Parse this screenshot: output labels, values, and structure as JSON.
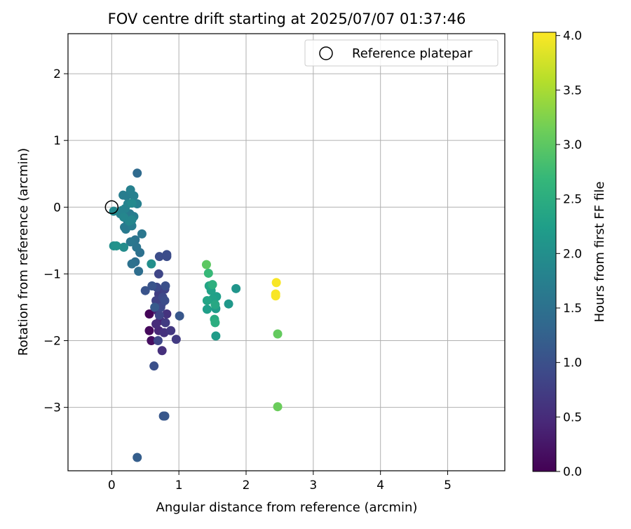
{
  "chart_data": {
    "type": "scatter",
    "title": "FOV centre drift starting at 2025/07/07 01:37:46",
    "xlabel": "Angular distance from reference (arcmin)",
    "ylabel": "Rotation from reference (arcmin)",
    "xlim": [
      -0.65,
      5.85
    ],
    "ylim": [
      -3.95,
      2.6
    ],
    "xticks": [
      0,
      1,
      2,
      3,
      4,
      5
    ],
    "xtick_labels": [
      "0",
      "1",
      "2",
      "3",
      "4",
      "5"
    ],
    "yticks": [
      2,
      1,
      0,
      -1,
      -2,
      -3
    ],
    "ytick_labels": [
      "2",
      "1",
      "0",
      "−1",
      "−2",
      "−3"
    ],
    "grid": true,
    "legend": {
      "placement": "top-right",
      "entries": [
        {
          "label": "Reference platepar",
          "marker": "open-circle"
        }
      ]
    },
    "colorbar": {
      "label": "Hours from first FF file",
      "colormap": "viridis",
      "range": [
        0.0,
        4.03
      ],
      "ticks": [
        0.0,
        0.5,
        1.0,
        1.5,
        2.0,
        2.5,
        3.0,
        3.5,
        4.0
      ],
      "tick_labels": [
        "0.0",
        "0.5",
        "1.0",
        "1.5",
        "2.0",
        "2.5",
        "3.0",
        "3.5",
        "4.0"
      ],
      "stops": [
        "#440154",
        "#482878",
        "#3e4989",
        "#31688e",
        "#26828e",
        "#1f9e89",
        "#35b779",
        "#6ece58",
        "#b5de2b",
        "#fde725"
      ]
    },
    "reference": {
      "x": 0.0,
      "y": 0.0
    },
    "points": [
      {
        "x": 0.56,
        "y": -1.6,
        "h": 0.05
      },
      {
        "x": 0.56,
        "y": -1.85,
        "h": 0.1
      },
      {
        "x": 0.59,
        "y": -2.0,
        "h": 0.15
      },
      {
        "x": 0.68,
        "y": -1.55,
        "h": 0.35
      },
      {
        "x": 0.72,
        "y": -1.7,
        "h": 0.4
      },
      {
        "x": 0.7,
        "y": -1.85,
        "h": 0.45
      },
      {
        "x": 0.66,
        "y": -1.75,
        "h": 0.5
      },
      {
        "x": 0.75,
        "y": -2.15,
        "h": 0.55
      },
      {
        "x": 0.78,
        "y": -1.88,
        "h": 0.6
      },
      {
        "x": 0.82,
        "y": -1.6,
        "h": 0.6
      },
      {
        "x": 0.88,
        "y": -1.85,
        "h": 0.65
      },
      {
        "x": 0.96,
        "y": -1.98,
        "h": 0.7
      },
      {
        "x": 0.8,
        "y": -1.73,
        "h": 0.7
      },
      {
        "x": 0.74,
        "y": -1.45,
        "h": 0.75
      },
      {
        "x": 0.7,
        "y": -1.3,
        "h": 0.75
      },
      {
        "x": 0.79,
        "y": -1.23,
        "h": 0.8
      },
      {
        "x": 0.66,
        "y": -1.4,
        "h": 0.8
      },
      {
        "x": 0.71,
        "y": -1.62,
        "h": 0.85
      },
      {
        "x": 0.69,
        "y": -2.0,
        "h": 0.85
      },
      {
        "x": 0.7,
        "y": -1.0,
        "h": 0.85
      },
      {
        "x": 0.67,
        "y": -1.2,
        "h": 0.9
      },
      {
        "x": 0.73,
        "y": -1.5,
        "h": 0.9
      },
      {
        "x": 0.76,
        "y": -1.35,
        "h": 0.9
      },
      {
        "x": 0.71,
        "y": -0.74,
        "h": 0.95
      },
      {
        "x": 0.82,
        "y": -0.74,
        "h": 0.95
      },
      {
        "x": 0.82,
        "y": -0.71,
        "h": 0.95
      },
      {
        "x": 0.79,
        "y": -1.4,
        "h": 0.95
      },
      {
        "x": 0.8,
        "y": -1.18,
        "h": 1.0
      },
      {
        "x": 0.63,
        "y": -2.38,
        "h": 1.0
      },
      {
        "x": 0.5,
        "y": -1.25,
        "h": 1.05
      },
      {
        "x": 0.6,
        "y": -1.18,
        "h": 1.05
      },
      {
        "x": 0.77,
        "y": -3.13,
        "h": 1.1
      },
      {
        "x": 0.79,
        "y": -3.13,
        "h": 1.1
      },
      {
        "x": 1.01,
        "y": -1.63,
        "h": 1.1
      },
      {
        "x": 0.64,
        "y": -1.5,
        "h": 1.15
      },
      {
        "x": 0.38,
        "y": -3.75,
        "h": 1.2
      },
      {
        "x": 0.38,
        "y": 0.51,
        "h": 1.4
      },
      {
        "x": 0.4,
        "y": -0.96,
        "h": 1.45
      },
      {
        "x": 0.35,
        "y": -0.82,
        "h": 1.45
      },
      {
        "x": 0.3,
        "y": -0.85,
        "h": 1.5
      },
      {
        "x": 0.42,
        "y": -0.68,
        "h": 1.5
      },
      {
        "x": 0.37,
        "y": -0.6,
        "h": 1.55
      },
      {
        "x": 0.35,
        "y": -0.49,
        "h": 1.55
      },
      {
        "x": 0.45,
        "y": -0.4,
        "h": 1.6
      },
      {
        "x": 0.28,
        "y": -0.52,
        "h": 1.6
      },
      {
        "x": 0.24,
        "y": -0.22,
        "h": 1.6
      },
      {
        "x": 0.19,
        "y": -0.3,
        "h": 1.65
      },
      {
        "x": 0.21,
        "y": -0.33,
        "h": 1.65
      },
      {
        "x": 0.27,
        "y": -0.1,
        "h": 1.65
      },
      {
        "x": 0.3,
        "y": -0.28,
        "h": 1.7
      },
      {
        "x": 0.33,
        "y": -0.14,
        "h": 1.7
      },
      {
        "x": 0.17,
        "y": 0.18,
        "h": 1.7
      },
      {
        "x": 0.22,
        "y": 0.17,
        "h": 1.7
      },
      {
        "x": 0.28,
        "y": 0.26,
        "h": 1.75
      },
      {
        "x": 0.33,
        "y": 0.17,
        "h": 1.75
      },
      {
        "x": 0.38,
        "y": 0.05,
        "h": 1.75
      },
      {
        "x": 0.24,
        "y": 0.05,
        "h": 1.8
      },
      {
        "x": 0.2,
        "y": -0.02,
        "h": 1.8
      },
      {
        "x": 0.15,
        "y": -0.05,
        "h": 1.8
      },
      {
        "x": 0.13,
        "y": -0.1,
        "h": 1.8
      },
      {
        "x": 0.18,
        "y": -0.15,
        "h": 1.85
      },
      {
        "x": 0.26,
        "y": -0.21,
        "h": 1.85
      },
      {
        "x": 0.3,
        "y": -0.19,
        "h": 1.85
      },
      {
        "x": 0.3,
        "y": 0.06,
        "h": 1.9
      },
      {
        "x": 0.03,
        "y": -0.06,
        "h": 1.9
      },
      {
        "x": 0.18,
        "y": -0.6,
        "h": 1.95
      },
      {
        "x": 0.59,
        "y": -0.85,
        "h": 2.0
      },
      {
        "x": 0.03,
        "y": -0.58,
        "h": 2.0
      },
      {
        "x": 0.07,
        "y": -0.58,
        "h": 2.05
      },
      {
        "x": 1.85,
        "y": -1.22,
        "h": 2.1
      },
      {
        "x": 1.74,
        "y": -1.45,
        "h": 2.15
      },
      {
        "x": 1.55,
        "y": -1.93,
        "h": 2.2
      },
      {
        "x": 1.55,
        "y": -1.52,
        "h": 2.2
      },
      {
        "x": 1.56,
        "y": -1.34,
        "h": 2.25
      },
      {
        "x": 1.42,
        "y": -1.53,
        "h": 2.25
      },
      {
        "x": 1.5,
        "y": -1.38,
        "h": 2.3
      },
      {
        "x": 1.48,
        "y": -1.25,
        "h": 2.3
      },
      {
        "x": 1.42,
        "y": -1.4,
        "h": 2.35
      },
      {
        "x": 1.45,
        "y": -1.18,
        "h": 2.35
      },
      {
        "x": 1.54,
        "y": -1.46,
        "h": 2.4
      },
      {
        "x": 1.53,
        "y": -1.68,
        "h": 2.45
      },
      {
        "x": 1.54,
        "y": -1.73,
        "h": 2.5
      },
      {
        "x": 1.5,
        "y": -1.16,
        "h": 2.55
      },
      {
        "x": 1.44,
        "y": -0.99,
        "h": 2.7
      },
      {
        "x": 1.41,
        "y": -0.86,
        "h": 3.0
      },
      {
        "x": 2.47,
        "y": -1.9,
        "h": 3.05
      },
      {
        "x": 2.47,
        "y": -2.99,
        "h": 3.1
      },
      {
        "x": 2.44,
        "y": -1.3,
        "h": 4.0
      },
      {
        "x": 2.44,
        "y": -1.33,
        "h": 4.0
      },
      {
        "x": 2.45,
        "y": -1.13,
        "h": 4.0
      }
    ]
  }
}
